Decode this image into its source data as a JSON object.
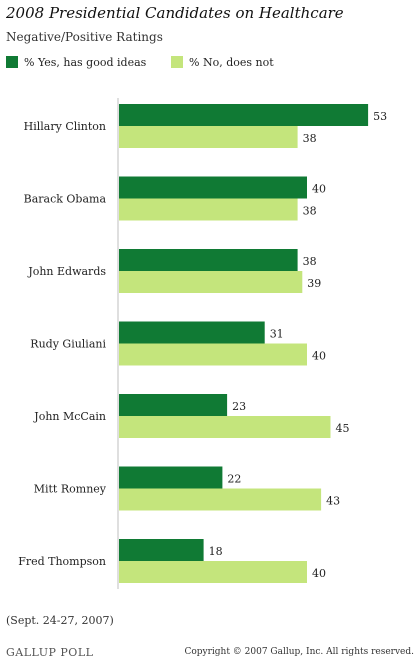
{
  "title": "2008 Presidential Candidates on Healthcare",
  "subtitle": "Negative/Positive Ratings",
  "colors": {
    "yes": "#107a34",
    "no": "#c4e57c",
    "axis": "#bfbfbf"
  },
  "chart_data": {
    "type": "bar",
    "orientation": "horizontal",
    "categories": [
      "Hillary Clinton",
      "Barack Obama",
      "John Edwards",
      "Rudy Giuliani",
      "John McCain",
      "Mitt Romney",
      "Fred Thompson"
    ],
    "series": [
      {
        "name": "% Yes, has good ideas",
        "values": [
          53,
          40,
          38,
          31,
          23,
          22,
          18
        ]
      },
      {
        "name": "% No, does not",
        "values": [
          38,
          38,
          39,
          40,
          45,
          43,
          40
        ]
      }
    ],
    "xlim": [
      0,
      60
    ],
    "legend": "top-left",
    "grid": false
  },
  "source_note": "(Sept. 24-27, 2007)",
  "logo_text": "GALLUP POLL",
  "copyright": "Copyright © 2007 Gallup, Inc. All rights reserved."
}
